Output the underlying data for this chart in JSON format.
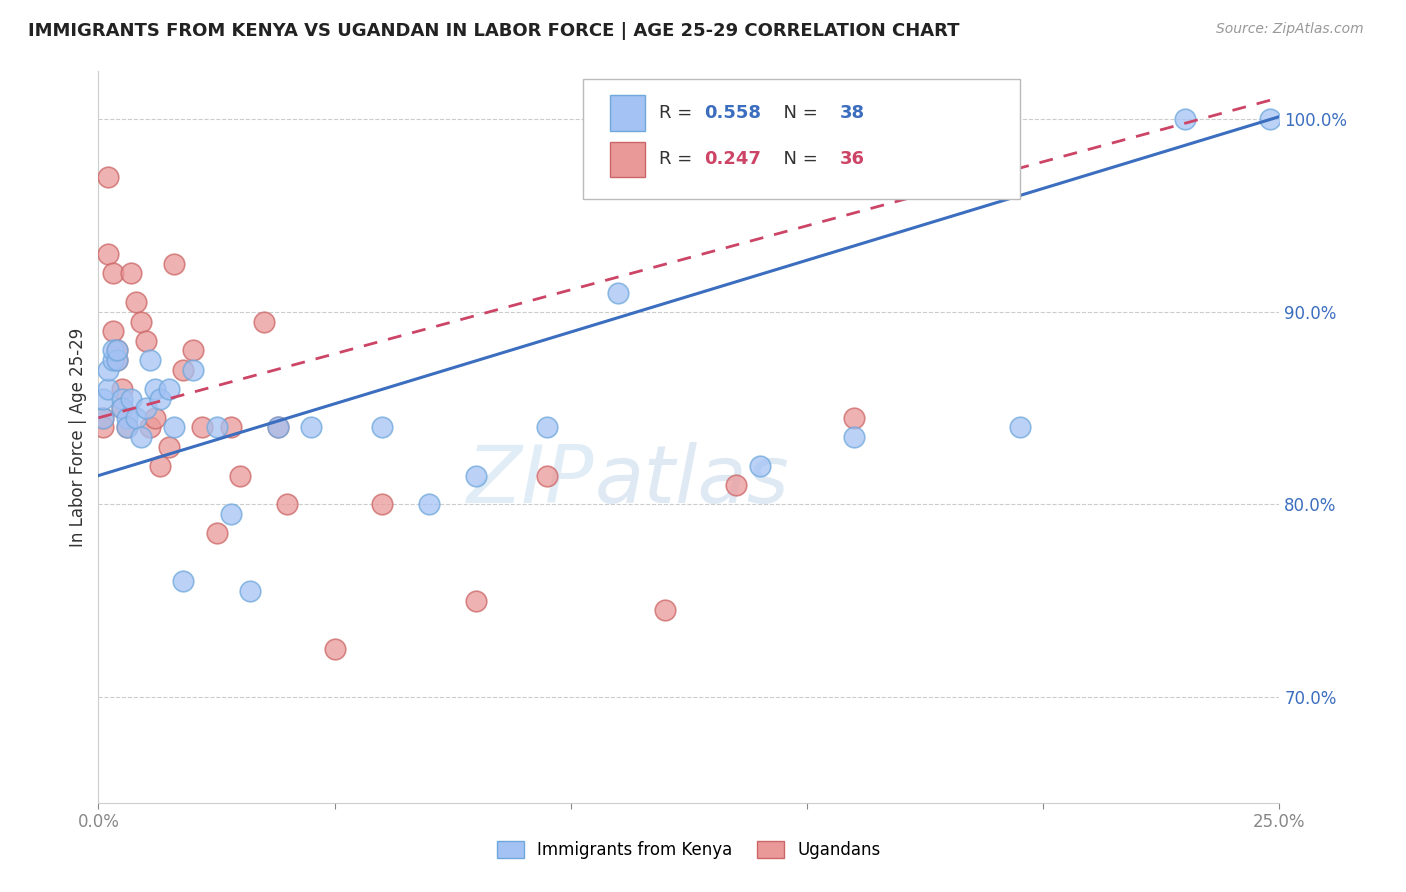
{
  "title": "IMMIGRANTS FROM KENYA VS UGANDAN IN LABOR FORCE | AGE 25-29 CORRELATION CHART",
  "source": "Source: ZipAtlas.com",
  "ylabel": "In Labor Force | Age 25-29",
  "legend_R1": "0.558",
  "legend_N1": "38",
  "legend_R2": "0.247",
  "legend_N2": "36",
  "kenya_color_fill": "#a4c2f4",
  "kenya_color_edge": "#6fa8dc",
  "uganda_color_fill": "#ea9999",
  "uganda_color_edge": "#cc6666",
  "kenya_line_color": "#3c6ebf",
  "uganda_line_color": "#cc4466",
  "right_tick_color": "#3c6ebf",
  "watermark_color": "#d0e8f8",
  "xlim": [
    0.0,
    0.25
  ],
  "ylim": [
    0.645,
    1.025
  ],
  "x_ticks": [
    0.0,
    0.05,
    0.1,
    0.15,
    0.2,
    0.25
  ],
  "y_ticks": [
    0.7,
    0.8,
    0.9,
    1.0
  ],
  "kenya_x": [
    0.001,
    0.001,
    0.002,
    0.002,
    0.003,
    0.003,
    0.004,
    0.004,
    0.005,
    0.005,
    0.006,
    0.006,
    0.007,
    0.008,
    0.009,
    0.01,
    0.011,
    0.012,
    0.013,
    0.015,
    0.016,
    0.018,
    0.02,
    0.025,
    0.028,
    0.032,
    0.038,
    0.045,
    0.06,
    0.07,
    0.08,
    0.095,
    0.11,
    0.14,
    0.16,
    0.195,
    0.23,
    0.248
  ],
  "kenya_y": [
    0.845,
    0.855,
    0.86,
    0.87,
    0.875,
    0.88,
    0.875,
    0.88,
    0.855,
    0.85,
    0.845,
    0.84,
    0.855,
    0.845,
    0.835,
    0.85,
    0.875,
    0.86,
    0.855,
    0.86,
    0.84,
    0.76,
    0.87,
    0.84,
    0.795,
    0.755,
    0.84,
    0.84,
    0.84,
    0.8,
    0.815,
    0.84,
    0.91,
    0.82,
    0.835,
    0.84,
    1.0,
    1.0
  ],
  "uganda_x": [
    0.001,
    0.001,
    0.002,
    0.002,
    0.003,
    0.003,
    0.004,
    0.004,
    0.005,
    0.005,
    0.006,
    0.007,
    0.008,
    0.009,
    0.01,
    0.011,
    0.012,
    0.013,
    0.015,
    0.016,
    0.018,
    0.02,
    0.022,
    0.025,
    0.028,
    0.03,
    0.035,
    0.038,
    0.04,
    0.05,
    0.06,
    0.08,
    0.095,
    0.12,
    0.135,
    0.16
  ],
  "uganda_y": [
    0.845,
    0.84,
    0.97,
    0.93,
    0.92,
    0.89,
    0.88,
    0.875,
    0.86,
    0.85,
    0.84,
    0.92,
    0.905,
    0.895,
    0.885,
    0.84,
    0.845,
    0.82,
    0.83,
    0.925,
    0.87,
    0.88,
    0.84,
    0.785,
    0.84,
    0.815,
    0.895,
    0.84,
    0.8,
    0.725,
    0.8,
    0.75,
    0.815,
    0.745,
    0.81,
    0.845
  ]
}
